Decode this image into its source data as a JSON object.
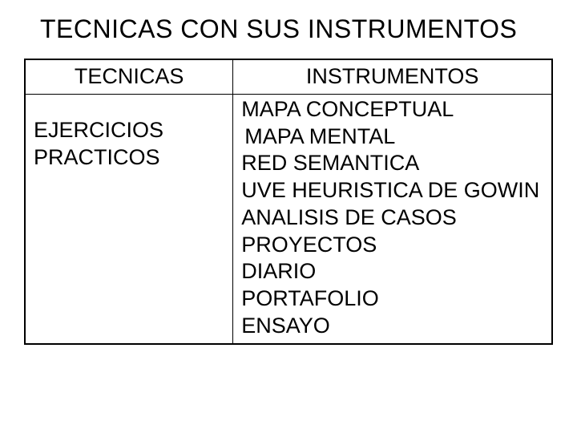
{
  "title": "TECNICAS CON SUS INSTRUMENTOS",
  "table": {
    "headers": {
      "left": "TECNICAS",
      "right": "INSTRUMENTOS"
    },
    "left_body": "EJERCICIOS PRACTICOS",
    "instrumentos": [
      "MAPA CONCEPTUAL",
      " MAPA MENTAL",
      "RED SEMANTICA",
      "UVE HEURISTICA DE GOWIN",
      "ANALISIS DE CASOS",
      "PROYECTOS",
      "DIARIO",
      "PORTAFOLIO",
      "ENSAYO"
    ]
  },
  "style": {
    "background_color": "#ffffff",
    "text_color": "#000000",
    "border_color": "#000000",
    "title_fontsize": 32,
    "cell_fontsize": 27,
    "font_family": "Arial"
  }
}
